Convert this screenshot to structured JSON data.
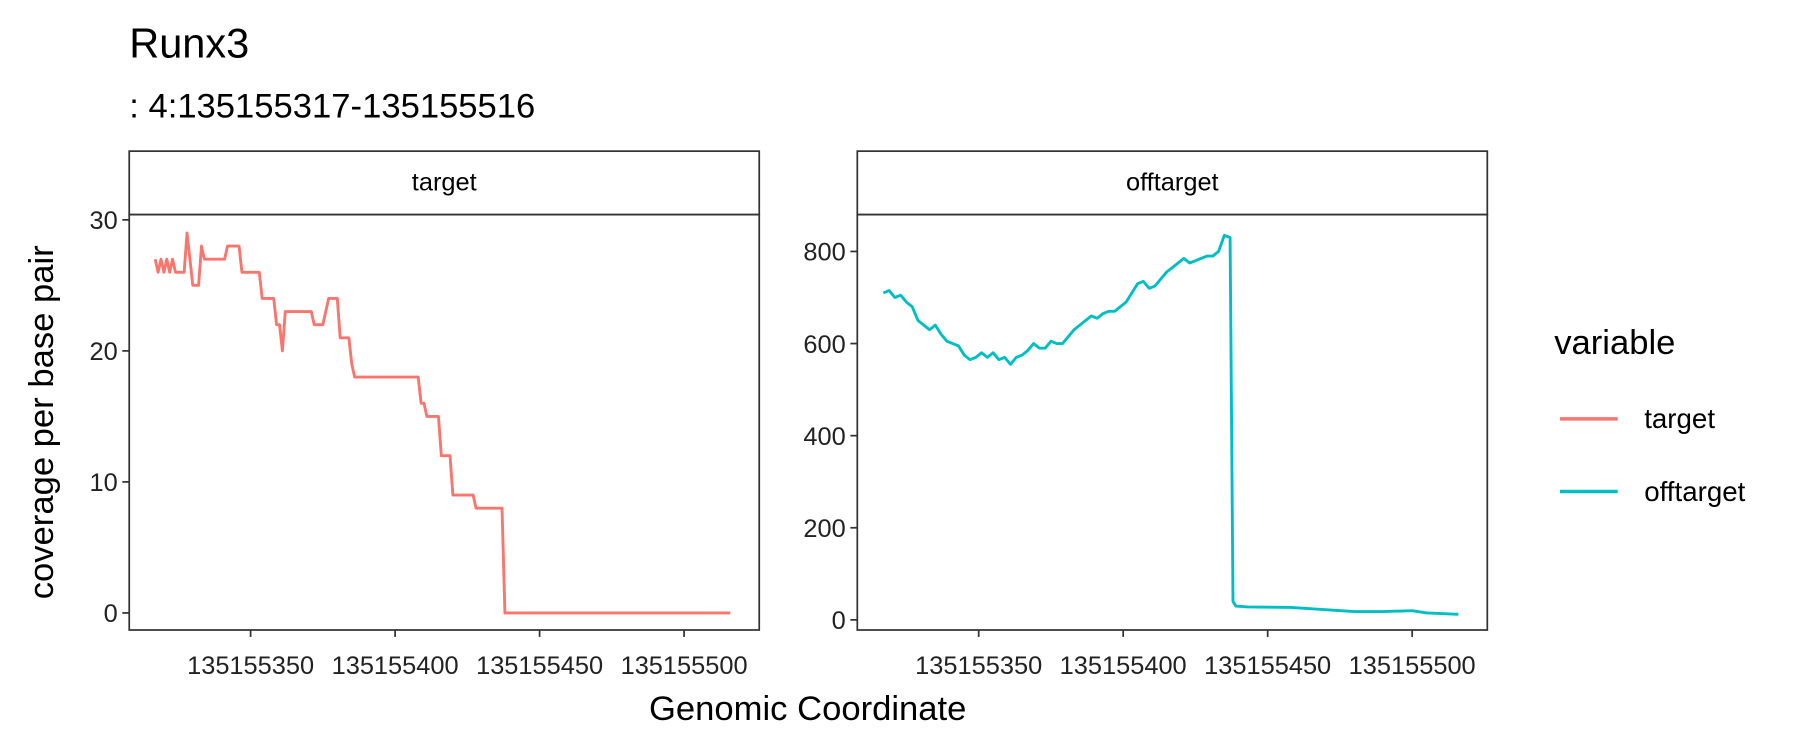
{
  "chart_data": {
    "type": "line",
    "title": "Runx3",
    "subtitle": ": 4:135155317-135155516",
    "xlabel": "Genomic Coordinate",
    "ylabel": "coverage per base pair",
    "legend_title": "variable",
    "panels": [
      {
        "name": "target",
        "color": "#F8766D",
        "xlim": [
          135155308,
          135155526
        ],
        "ylim": [
          -1.3,
          30.4
        ],
        "xticks": [
          135155350,
          135155400,
          135155450,
          135155500
        ],
        "yticks": [
          0,
          10,
          20,
          30
        ],
        "x": [
          135155317,
          135155318,
          135155319,
          135155320,
          135155321,
          135155322,
          135155323,
          135155324,
          135155325,
          135155327,
          135155328,
          135155329,
          135155330,
          135155332,
          135155333,
          135155334,
          135155341,
          135155342,
          135155346,
          135155347,
          135155353,
          135155354,
          135155358,
          135155359,
          135155360,
          135155361,
          135155362,
          135155371,
          135155372,
          135155375,
          135155376,
          135155377,
          135155380,
          135155381,
          135155384,
          135155385,
          135155386,
          135155408,
          135155409,
          135155410,
          135155411,
          135155415,
          135155416,
          135155419,
          135155420,
          135155427,
          135155428,
          135155437,
          135155438,
          135155516
        ],
        "values": [
          27,
          26,
          27,
          26,
          27,
          26,
          27,
          26,
          26,
          26,
          29,
          27,
          25,
          25,
          28,
          27,
          27,
          28,
          28,
          26,
          26,
          24,
          24,
          22,
          22,
          20,
          23,
          23,
          22,
          22,
          23,
          24,
          24,
          21,
          21,
          19,
          18,
          18,
          16,
          16,
          15,
          15,
          12,
          12,
          9,
          9,
          8,
          8,
          0,
          0
        ]
      },
      {
        "name": "offtarget",
        "color": "#00BFC4",
        "xlim": [
          135155308,
          135155526
        ],
        "ylim": [
          -22,
          880
        ],
        "xticks": [
          135155350,
          135155400,
          135155450,
          135155500
        ],
        "yticks": [
          0,
          200,
          400,
          600,
          800
        ],
        "x": [
          135155317,
          135155319,
          135155321,
          135155323,
          135155325,
          135155327,
          135155329,
          135155331,
          135155333,
          135155335,
          135155337,
          135155339,
          135155341,
          135155343,
          135155345,
          135155347,
          135155349,
          135155351,
          135155353,
          135155355,
          135155357,
          135155359,
          135155361,
          135155363,
          135155365,
          135155367,
          135155369,
          135155371,
          135155373,
          135155375,
          135155377,
          135155379,
          135155381,
          135155383,
          135155385,
          135155387,
          135155389,
          135155391,
          135155393,
          135155395,
          135155397,
          135155399,
          135155401,
          135155403,
          135155405,
          135155407,
          135155409,
          135155411,
          135155413,
          135155415,
          135155417,
          135155419,
          135155421,
          135155423,
          135155425,
          135155427,
          135155429,
          135155431,
          135155433,
          135155435,
          135155437,
          135155438,
          135155439,
          135155443,
          135155458,
          135155470,
          135155480,
          135155490,
          135155500,
          135155505,
          135155516
        ],
        "values": [
          710,
          715,
          700,
          705,
          690,
          680,
          650,
          640,
          630,
          640,
          620,
          605,
          600,
          595,
          575,
          565,
          570,
          580,
          570,
          580,
          565,
          570,
          555,
          570,
          575,
          585,
          600,
          590,
          590,
          605,
          600,
          600,
          615,
          630,
          640,
          650,
          660,
          655,
          665,
          670,
          670,
          680,
          690,
          710,
          730,
          735,
          720,
          725,
          740,
          755,
          765,
          775,
          785,
          775,
          780,
          785,
          790,
          790,
          800,
          835,
          830,
          40,
          30,
          28,
          27,
          22,
          18,
          18,
          20,
          15,
          12
        ]
      }
    ]
  }
}
